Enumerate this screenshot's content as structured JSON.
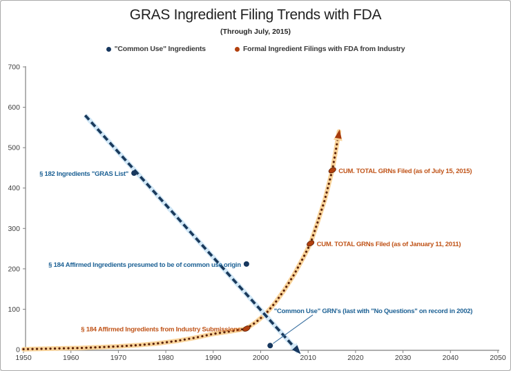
{
  "header": {
    "title": "GRAS Ingredient Filing Trends with FDA",
    "subtitle": "(Through July, 2015)"
  },
  "colors": {
    "blue_marker": "#17375E",
    "blue_line": "#1A3A5C",
    "blue_halo": "#D2E8F7",
    "blue_text": "#1E6295",
    "orange_marker": "#B2400E",
    "orange_dot": "#5B2109",
    "orange_halo": "#F9D49B",
    "orange_text": "#C05419",
    "axis": "#7F7F7F"
  },
  "chart_data": {
    "type": "line",
    "title": "GRAS Ingredient Filing Trends with FDA",
    "subtitle": "(Through July, 2015)",
    "xlabel": "",
    "ylabel": "",
    "xlim": [
      1950,
      2050
    ],
    "ylim": [
      0,
      700
    ],
    "x_ticks": [
      1950,
      1960,
      1970,
      1980,
      1990,
      2000,
      2010,
      2020,
      2030,
      2040,
      2050
    ],
    "y_ticks": [
      0,
      100,
      200,
      300,
      400,
      500,
      600,
      700
    ],
    "grid": false,
    "legend": {
      "position": "top",
      "items": [
        {
          "label": "\"Common Use\" Ingredients",
          "color": "#17375E"
        },
        {
          "label": "Formal Ingredient Filings with FDA from Industry",
          "color": "#B2400E"
        }
      ]
    },
    "series": [
      {
        "name": "\"Common Use\" Ingredients",
        "style": "dashed-trend-with-arrow",
        "trend": {
          "from": {
            "x": 1963,
            "y": 580
          },
          "to": {
            "x": 2008,
            "y": -6
          }
        },
        "points": [
          {
            "x": 1973.3,
            "y": 437,
            "note": "§ 182 GRAS List"
          },
          {
            "x": 1997,
            "y": 212,
            "note": "§ 184 affirmed, common-use origin"
          },
          {
            "x": 2002,
            "y": 10,
            "note": "last Common Use GRN with No Questions (2002)"
          }
        ]
      },
      {
        "name": "Formal Ingredient Filings with FDA from Industry",
        "style": "dotted-curve-with-arrow",
        "points": [
          [
            1950,
            1
          ],
          [
            1954,
            2
          ],
          [
            1958,
            3
          ],
          [
            1962,
            4
          ],
          [
            1966,
            6
          ],
          [
            1970,
            8
          ],
          [
            1974,
            11
          ],
          [
            1978,
            15
          ],
          [
            1982,
            21
          ],
          [
            1986,
            29
          ],
          [
            1990,
            39
          ],
          [
            1994,
            46
          ],
          [
            1997,
            52
          ],
          [
            1999,
            68
          ],
          [
            2001,
            88
          ],
          [
            2003,
            115
          ],
          [
            2005,
            148
          ],
          [
            2007,
            185
          ],
          [
            2009,
            228
          ],
          [
            2010.5,
            263
          ],
          [
            2012,
            315
          ],
          [
            2013.5,
            370
          ],
          [
            2015.1,
            444
          ],
          [
            2015.8,
            490
          ],
          [
            2016.5,
            540
          ]
        ],
        "markers": [
          {
            "x": 1997,
            "y": 52,
            "note": "§ 184 affirmed from industry submissions"
          },
          {
            "x": 2010.5,
            "y": 263,
            "note": "Cum. total GRNs as of Jan 11, 2011"
          },
          {
            "x": 2015.1,
            "y": 444,
            "note": "Cum. total GRNs as of July 15, 2015"
          }
        ]
      }
    ],
    "annotations": [
      {
        "id": "gras-list",
        "text": "§ 182 Ingredients \"GRAS List\"",
        "color": "blue",
        "align": "right",
        "anchor": {
          "x": 1973.3,
          "y": 437
        }
      },
      {
        "id": "affirmed-common-use",
        "text": "§ 184 Affirmed Ingredients presumed to be of common use origin",
        "color": "blue",
        "align": "right",
        "anchor": {
          "x": 1997,
          "y": 212
        }
      },
      {
        "id": "affirmed-industry",
        "text": "§ 184 Affirmed Ingredients from Industry Submissions",
        "color": "orange",
        "align": "right",
        "anchor": {
          "x": 1997,
          "y": 52
        }
      },
      {
        "id": "grn-total-2015",
        "text": "CUM.  TOTAL GRNs Filed (as of July 15, 2015)",
        "color": "orange",
        "align": "left",
        "anchor": {
          "x": 2015.1,
          "y": 444
        }
      },
      {
        "id": "grn-total-2011",
        "text": "CUM.  TOTAL GRNs Filed (as of January 11, 2011)",
        "color": "orange",
        "align": "left",
        "anchor": {
          "x": 2010.5,
          "y": 263
        }
      },
      {
        "id": "common-use-grn",
        "text": "\"Common Use\" GRN's (last with \"No Questions\" on record in 2002)",
        "color": "blue",
        "align": "free",
        "anchor": {
          "x": 2002.8,
          "y": 97
        },
        "leader": {
          "from": {
            "x": 2011.0,
            "y": 86
          },
          "to": {
            "x": 2002.6,
            "y": 15
          }
        }
      }
    ]
  }
}
